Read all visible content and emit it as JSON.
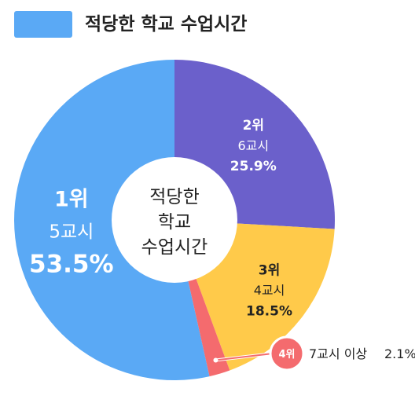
{
  "legend": {
    "label": "적당한 학교 수업시간",
    "color": "#5aa9f5"
  },
  "chart_data": {
    "type": "pie",
    "title": "적당한 학교 수업시간",
    "center_label": [
      "적당한",
      "학교",
      "수업시간"
    ],
    "slices": [
      {
        "rank": "1위",
        "category": "5교시",
        "value": 53.5,
        "value_label": "53.5%",
        "color": "#5aa9f5"
      },
      {
        "rank": "2위",
        "category": "6교시",
        "value": 25.9,
        "value_label": "25.9%",
        "color": "#6b60cb"
      },
      {
        "rank": "3위",
        "category": "4교시",
        "value": 18.5,
        "value_label": "18.5%",
        "color": "#ffca4a"
      },
      {
        "rank": "4위",
        "category": "7교시 이상",
        "value": 2.1,
        "value_label": "2.1%",
        "color": "#f46b6e"
      }
    ]
  }
}
